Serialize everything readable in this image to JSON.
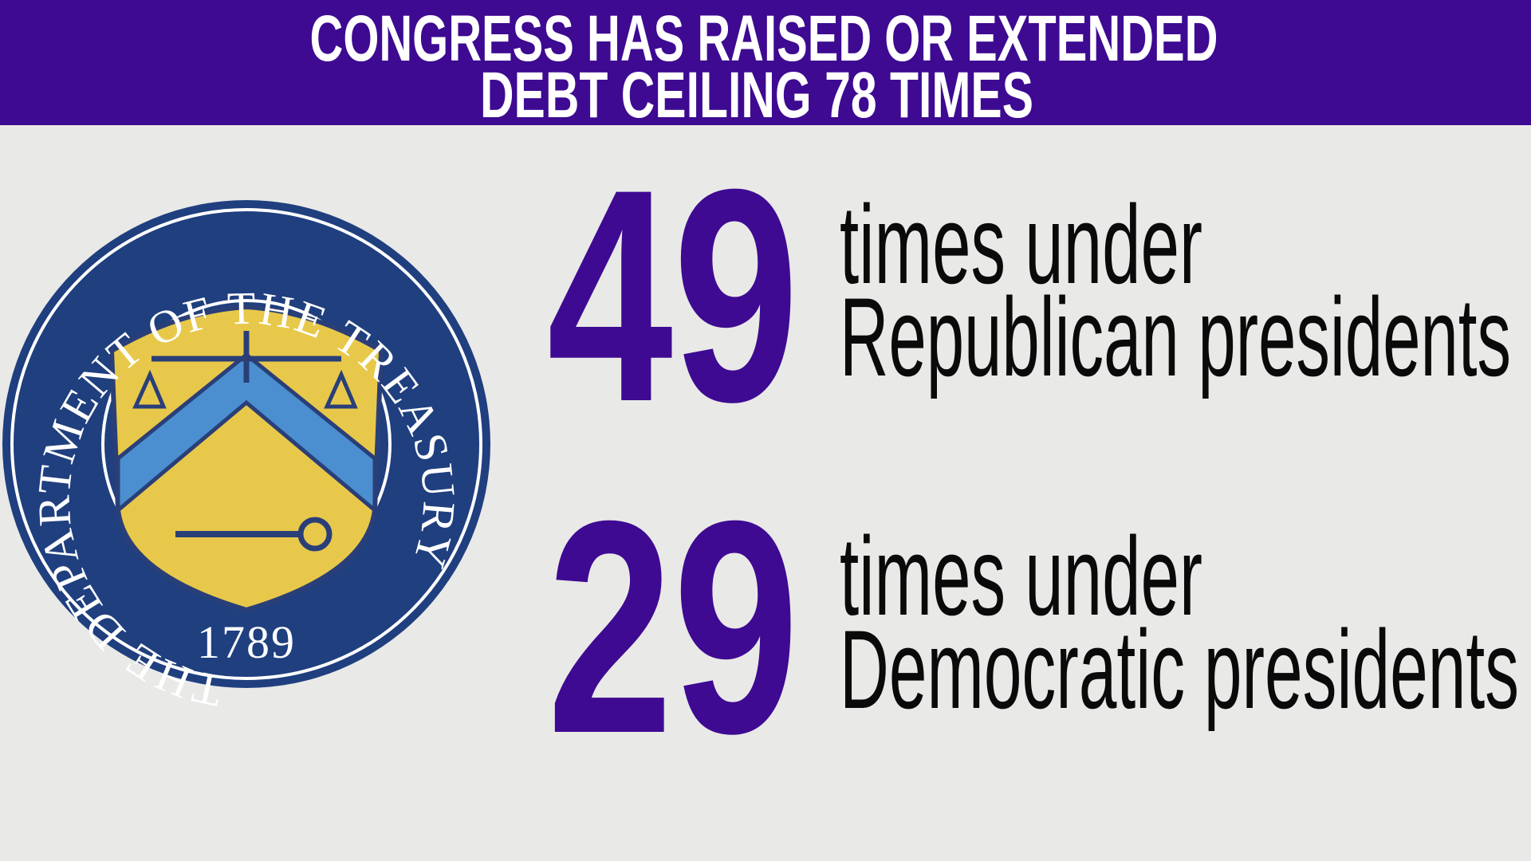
{
  "header": {
    "title_lines": [
      "CONGRESS HAS RAISED OR EXTENDED",
      "DEBT CEILING 78 TIMES"
    ]
  },
  "seal": {
    "text": "THE DEPARTMENT OF THE TREASURY",
    "year": "1789"
  },
  "stats": [
    {
      "number": 49,
      "lines": [
        "times under",
        "Republican presidents"
      ]
    },
    {
      "number": 29,
      "lines": [
        "times under",
        "Democratic presidents"
      ]
    }
  ]
}
